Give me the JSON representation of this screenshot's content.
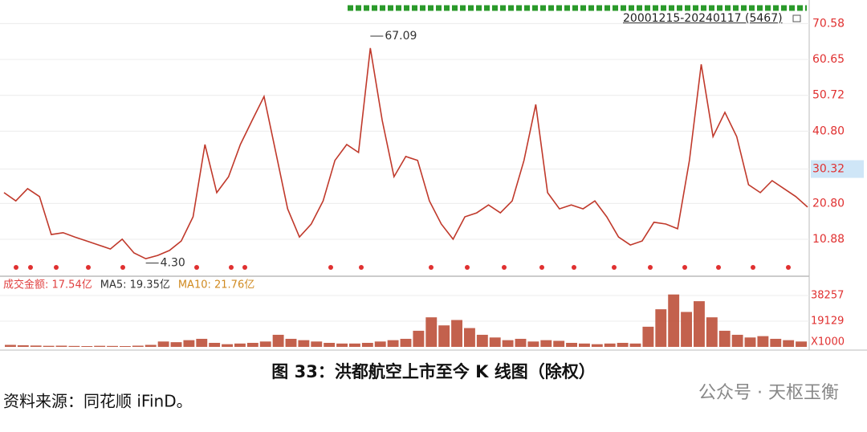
{
  "chart_data": {
    "type": "line",
    "date_range": "20001215-20240117 (5467)",
    "series": [
      {
        "name": "K线",
        "color": "#c0392b",
        "values": [
          23.8,
          21.5,
          24.9,
          22.7,
          12.2,
          12.7,
          11.5,
          10.4,
          9.3,
          8.2,
          10.9,
          7.1,
          5.5,
          6.4,
          7.8,
          10.4,
          17.1,
          37.1,
          23.8,
          28.2,
          37.1,
          43.8,
          50.4,
          34.9,
          19.3,
          11.5,
          15.1,
          21.5,
          32.7,
          37.1,
          34.9,
          63.8,
          43.8,
          28.2,
          33.8,
          32.7,
          21.5,
          15.1,
          10.9,
          17.1,
          18.2,
          20.4,
          18.2,
          21.5,
          32.7,
          48.2,
          23.8,
          19.3,
          20.4,
          19.3,
          21.5,
          17.1,
          11.5,
          9.3,
          10.4,
          15.6,
          15.1,
          13.8,
          32.7,
          59.3,
          39.3,
          46.0,
          39.3,
          26.0,
          23.8,
          27.1,
          24.9,
          22.7,
          19.8
        ]
      }
    ],
    "high": 67.09,
    "low": {
      "value": 4.3,
      "label": "4.30"
    },
    "ylim": [
      1.1,
      77.1
    ],
    "yticks": [
      70.58,
      60.65,
      50.72,
      {
        "value": 40.8,
        "label": "40.80"
      },
      30.32,
      {
        "value": 20.8,
        "label": "20.80"
      },
      10.88
    ],
    "highlight_tick": 30.32,
    "grid": true,
    "volume": {
      "color": "#b8452e",
      "legend": [
        {
          "label": "成交金额: 17.54亿",
          "color": "#e04040"
        },
        {
          "label": "MA5: 19.35亿",
          "color": "#333333"
        },
        {
          "label": "MA10: 21.76亿",
          "color": "#d08a20"
        }
      ],
      "values": [
        1500,
        1200,
        1000,
        800,
        900,
        700,
        600,
        800,
        700,
        600,
        900,
        1500,
        4000,
        3500,
        5000,
        6000,
        3000,
        2000,
        2500,
        3000,
        4000,
        9000,
        6000,
        5000,
        4000,
        3000,
        2500,
        2500,
        3000,
        4000,
        5000,
        6000,
        12000,
        22000,
        16000,
        20000,
        14000,
        9000,
        7000,
        5000,
        6000,
        4000,
        5000,
        4500,
        3000,
        2500,
        2000,
        2500,
        3000,
        2500,
        15000,
        28000,
        39000,
        26000,
        34000,
        22000,
        12000,
        9000,
        7000,
        8000,
        6000,
        5000,
        4000
      ],
      "ylim": [
        0,
        47800
      ],
      "yticks": [
        38257,
        19129
      ],
      "unit": "X1000"
    }
  },
  "caption": "图 33：洪都航空上市至今 K 线图（除权）",
  "source": "资料来源：同花顺 iFinD。",
  "watermark": "公众号 · 天枢玉衡"
}
